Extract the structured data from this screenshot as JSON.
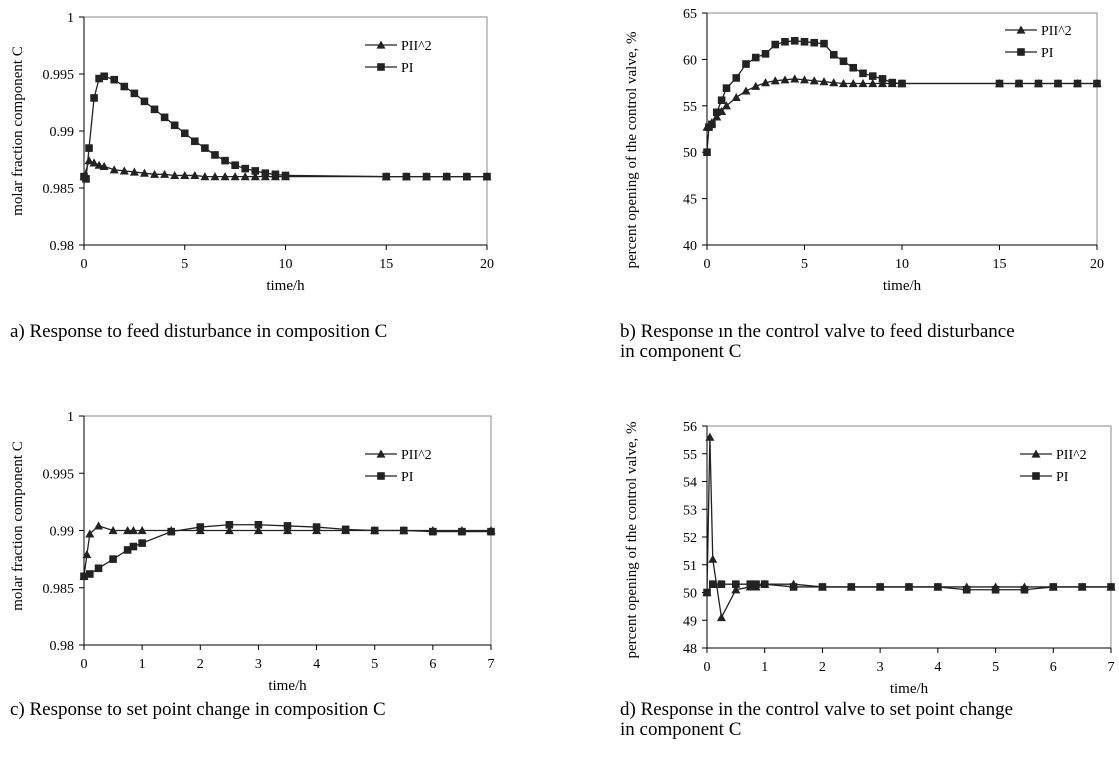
{
  "series_names": [
    "PII^2",
    "PI"
  ],
  "chart_data": [
    {
      "type": "line",
      "caption": "a) Response to feed disturbance in composition C",
      "xlabel": "time/h",
      "ylabel": "molar fraction component C",
      "xlim": [
        0,
        20
      ],
      "ylim": [
        0.98,
        1
      ],
      "xticks": [
        0,
        5,
        10,
        15,
        20
      ],
      "xtick_labels": [
        "0",
        "5",
        "10",
        "15",
        "20"
      ],
      "yticks": [
        0.98,
        0.985,
        0.99,
        0.995,
        1
      ],
      "ytick_labels": [
        "0.98",
        "0.985",
        "0.99",
        "0.995",
        "1"
      ],
      "grid": false,
      "legend": "top-right",
      "series": [
        {
          "name": "PII^2",
          "marker": "triangle",
          "x": [
            0,
            0.25,
            0.5,
            0.75,
            1,
            1.5,
            2,
            2.5,
            3,
            3.5,
            4,
            4.5,
            5,
            5.5,
            6,
            6.5,
            7,
            7.5,
            8,
            8.5,
            9,
            9.5,
            10,
            15,
            16,
            17,
            18,
            19,
            20
          ],
          "y": [
            0.986,
            0.9874,
            0.9872,
            0.987,
            0.9869,
            0.9866,
            0.9865,
            0.9864,
            0.9863,
            0.9862,
            0.9862,
            0.9861,
            0.9861,
            0.9861,
            0.986,
            0.986,
            0.986,
            0.986,
            0.986,
            0.986,
            0.986,
            0.986,
            0.986,
            0.986,
            0.986,
            0.986,
            0.986,
            0.986,
            0.986
          ]
        },
        {
          "name": "PI",
          "marker": "square",
          "x": [
            0,
            0.1,
            0.25,
            0.5,
            0.75,
            1,
            1.5,
            2,
            2.5,
            3,
            3.5,
            4,
            4.5,
            5,
            5.5,
            6,
            6.5,
            7,
            7.5,
            8,
            8.5,
            9,
            9.5,
            10,
            15,
            16,
            17,
            18,
            19,
            20
          ],
          "y": [
            0.986,
            0.9858,
            0.9885,
            0.9929,
            0.9946,
            0.9948,
            0.9945,
            0.9939,
            0.9933,
            0.9926,
            0.9919,
            0.9912,
            0.9905,
            0.9898,
            0.9891,
            0.9885,
            0.9879,
            0.9874,
            0.987,
            0.9867,
            0.9865,
            0.9863,
            0.9862,
            0.9861,
            0.986,
            0.986,
            0.986,
            0.986,
            0.986,
            0.986
          ]
        }
      ]
    },
    {
      "type": "line",
      "caption": "b) Response ın the control valve to feed disturbance\n    in component C",
      "xlabel": "time/h",
      "ylabel": "percent opening of the control valve, %",
      "xlim": [
        0,
        20
      ],
      "ylim": [
        40,
        65
      ],
      "xticks": [
        0,
        5,
        10,
        15,
        20
      ],
      "xtick_labels": [
        "0",
        "5",
        "10",
        "15",
        "20"
      ],
      "yticks": [
        40,
        45,
        50,
        55,
        60,
        65
      ],
      "ytick_labels": [
        "40",
        "45",
        "50",
        "55",
        "60",
        "65"
      ],
      "grid": false,
      "legend": "top-right",
      "series": [
        {
          "name": "PII^2",
          "marker": "triangle",
          "x": [
            0,
            0.25,
            0.5,
            0.75,
            1,
            1.5,
            2,
            2.5,
            3,
            3.5,
            4,
            4.5,
            5,
            5.5,
            6,
            6.5,
            7,
            7.5,
            8,
            8.5,
            9,
            9.5,
            10,
            15,
            16,
            17,
            18,
            19,
            20
          ],
          "y": [
            52.7,
            53.2,
            53.8,
            54.4,
            55,
            55.9,
            56.6,
            57.1,
            57.5,
            57.7,
            57.8,
            57.9,
            57.8,
            57.7,
            57.6,
            57.5,
            57.4,
            57.4,
            57.4,
            57.4,
            57.4,
            57.4,
            57.4,
            57.4,
            57.4,
            57.4,
            57.4,
            57.4,
            57.4
          ]
        },
        {
          "name": "PI",
          "marker": "square",
          "x": [
            0,
            0.1,
            0.25,
            0.5,
            0.75,
            1,
            1.5,
            2,
            2.5,
            3,
            3.5,
            4,
            4.5,
            5,
            5.5,
            6,
            6.5,
            7,
            7.5,
            8,
            8.5,
            9,
            9.5,
            10,
            15,
            16,
            17,
            18,
            19,
            20
          ],
          "y": [
            50,
            52.7,
            53,
            54.3,
            55.6,
            56.9,
            58,
            59.5,
            60.2,
            60.6,
            61.6,
            61.9,
            62,
            61.9,
            61.8,
            61.7,
            60.5,
            59.8,
            59.1,
            58.5,
            58.2,
            57.9,
            57.5,
            57.4,
            57.4,
            57.4,
            57.4,
            57.4,
            57.4,
            57.4
          ]
        }
      ]
    },
    {
      "type": "line",
      "caption": "c) Response to set point change in composition C",
      "xlabel": "time/h",
      "ylabel": "molar fraction component C",
      "xlim": [
        0,
        7
      ],
      "ylim": [
        0.98,
        1
      ],
      "xticks": [
        0,
        1,
        2,
        3,
        4,
        5,
        6,
        7
      ],
      "xtick_labels": [
        "0",
        "1",
        "2",
        "3",
        "4",
        "5",
        "6",
        "7"
      ],
      "yticks": [
        0.98,
        0.985,
        0.99,
        0.995,
        1
      ],
      "ytick_labels": [
        "0.98",
        "0.985",
        "0.99",
        "0.995",
        "1"
      ],
      "grid": false,
      "legend": "top-right",
      "series": [
        {
          "name": "PII^2",
          "marker": "triangle",
          "x": [
            0,
            0.05,
            0.1,
            0.25,
            0.5,
            0.75,
            0.85,
            1,
            1.5,
            2,
            2.5,
            3,
            3.5,
            4,
            4.5,
            5,
            5.5,
            6,
            6.5,
            7
          ],
          "y": [
            0.986,
            0.9879,
            0.9897,
            0.9904,
            0.99,
            0.99,
            0.99,
            0.99,
            0.99,
            0.99,
            0.99,
            0.99,
            0.99,
            0.99,
            0.99,
            0.99,
            0.99,
            0.99,
            0.99,
            0.99
          ]
        },
        {
          "name": "PI",
          "marker": "square",
          "x": [
            0,
            0.1,
            0.25,
            0.5,
            0.75,
            0.85,
            1,
            1.5,
            2,
            2.5,
            3,
            3.5,
            4,
            4.5,
            5,
            5.5,
            6,
            6.5,
            7
          ],
          "y": [
            0.986,
            0.9862,
            0.9867,
            0.9875,
            0.9883,
            0.9886,
            0.9889,
            0.9899,
            0.9903,
            0.9905,
            0.9905,
            0.9904,
            0.9903,
            0.9901,
            0.99,
            0.99,
            0.9899,
            0.9899,
            0.9899
          ]
        }
      ]
    },
    {
      "type": "line",
      "caption": "d) Response in the control valve to set point change\n    in component C",
      "xlabel": "time/h",
      "ylabel": "percent opening of the control valve, %",
      "xlim": [
        0,
        7
      ],
      "ylim": [
        48,
        56
      ],
      "xticks": [
        0,
        1,
        2,
        3,
        4,
        5,
        6,
        7
      ],
      "xtick_labels": [
        "0",
        "1",
        "2",
        "3",
        "4",
        "5",
        "6",
        "7"
      ],
      "yticks": [
        48,
        49,
        50,
        51,
        52,
        53,
        54,
        55,
        56
      ],
      "ytick_labels": [
        "48",
        "49",
        "50",
        "51",
        "52",
        "53",
        "54",
        "55",
        "56"
      ],
      "grid": false,
      "legend": "top-right",
      "series": [
        {
          "name": "PII^2",
          "marker": "triangle",
          "x": [
            0,
            0.05,
            0.1,
            0.25,
            0.5,
            0.75,
            0.85,
            1,
            1.5,
            2,
            2.5,
            3,
            3.5,
            4,
            4.5,
            5,
            5.5,
            6,
            6.5,
            7
          ],
          "y": [
            50,
            55.6,
            51.2,
            49.1,
            50.1,
            50.2,
            50.2,
            50.3,
            50.3,
            50.2,
            50.2,
            50.2,
            50.2,
            50.2,
            50.2,
            50.2,
            50.2,
            50.2,
            50.2,
            50.2
          ]
        },
        {
          "name": "PI",
          "marker": "square",
          "x": [
            0,
            0.1,
            0.25,
            0.5,
            0.75,
            0.85,
            1,
            1.5,
            2,
            2.5,
            3,
            3.5,
            4,
            4.5,
            5,
            5.5,
            6,
            6.5,
            7
          ],
          "y": [
            50,
            50.3,
            50.3,
            50.3,
            50.3,
            50.3,
            50.3,
            50.2,
            50.2,
            50.2,
            50.2,
            50.2,
            50.2,
            50.1,
            50.1,
            50.1,
            50.2,
            50.2,
            50.2
          ]
        }
      ]
    }
  ]
}
